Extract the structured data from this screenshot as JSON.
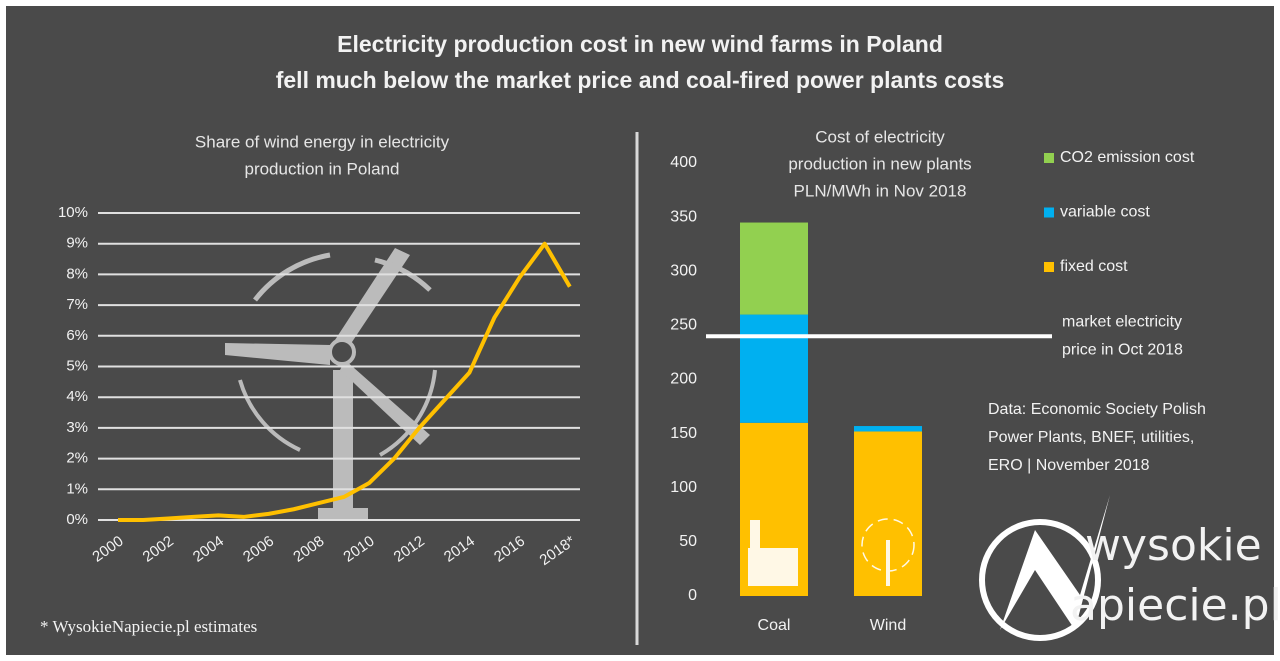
{
  "title": [
    "Electricity production cost in new wind farms in Poland",
    "fell much below the market price and coal-fired power plants costs"
  ],
  "footnote": "* WysokieNapiecie.pl estimates",
  "source": [
    "Data: Economic Society Polish",
    "Power Plants, BNEF, utilities,",
    "ERO  |  November 2018"
  ],
  "logo": [
    "wysokie",
    "apiecie.pl"
  ],
  "chart_data": [
    {
      "type": "line",
      "title": [
        "Share of wind energy in electricity",
        "production in Poland"
      ],
      "categories": [
        "2000",
        null,
        "2002",
        null,
        "2004",
        null,
        "2006",
        null,
        "2008",
        null,
        "2010",
        null,
        "2012",
        null,
        "2014",
        null,
        "2016",
        null,
        "2018*"
      ],
      "values": [
        0,
        0,
        0.05,
        0.1,
        0.15,
        0.1,
        0.2,
        0.35,
        0.55,
        0.75,
        1.2,
        2.0,
        3.0,
        3.9,
        4.8,
        6.6,
        7.9,
        9.0,
        7.6
      ],
      "color": "#ffc000",
      "ylim": [
        0,
        10
      ],
      "yticks": [
        {
          "value": 0,
          "label": "0%"
        },
        {
          "value": 1,
          "label": "1%"
        },
        {
          "value": 2,
          "label": "2%"
        },
        {
          "value": 3,
          "label": "3%"
        },
        {
          "value": 4,
          "label": "4%"
        },
        {
          "value": 5,
          "label": "5%"
        },
        {
          "value": 6,
          "label": "6%"
        },
        {
          "value": 7,
          "label": "7%"
        },
        {
          "value": 8,
          "label": "8%"
        },
        {
          "value": 9,
          "label": "9%"
        },
        {
          "value": 10,
          "label": "10%"
        }
      ],
      "grid": true
    },
    {
      "type": "bar",
      "stacked": true,
      "title": [
        "Cost of electricity",
        "production in new plants",
        "PLN/MWh in Nov 2018"
      ],
      "categories": [
        "Coal",
        "Wind"
      ],
      "series": [
        {
          "name": "fixed cost",
          "color": "#ffc000",
          "values": [
            160,
            152
          ]
        },
        {
          "name": "variable cost",
          "color": "#00b0f0",
          "values": [
            100,
            5
          ]
        },
        {
          "name": "CO2 emission cost",
          "color": "#92d050",
          "values": [
            85,
            0
          ]
        }
      ],
      "ylim": [
        0,
        400
      ],
      "yticks": [
        0,
        50,
        100,
        150,
        200,
        250,
        300,
        350,
        400
      ],
      "grid": false,
      "reference_line": {
        "value": 240,
        "label": [
          "market electricity",
          "price in Oct 2018"
        ],
        "color": "#ffffff"
      }
    }
  ]
}
